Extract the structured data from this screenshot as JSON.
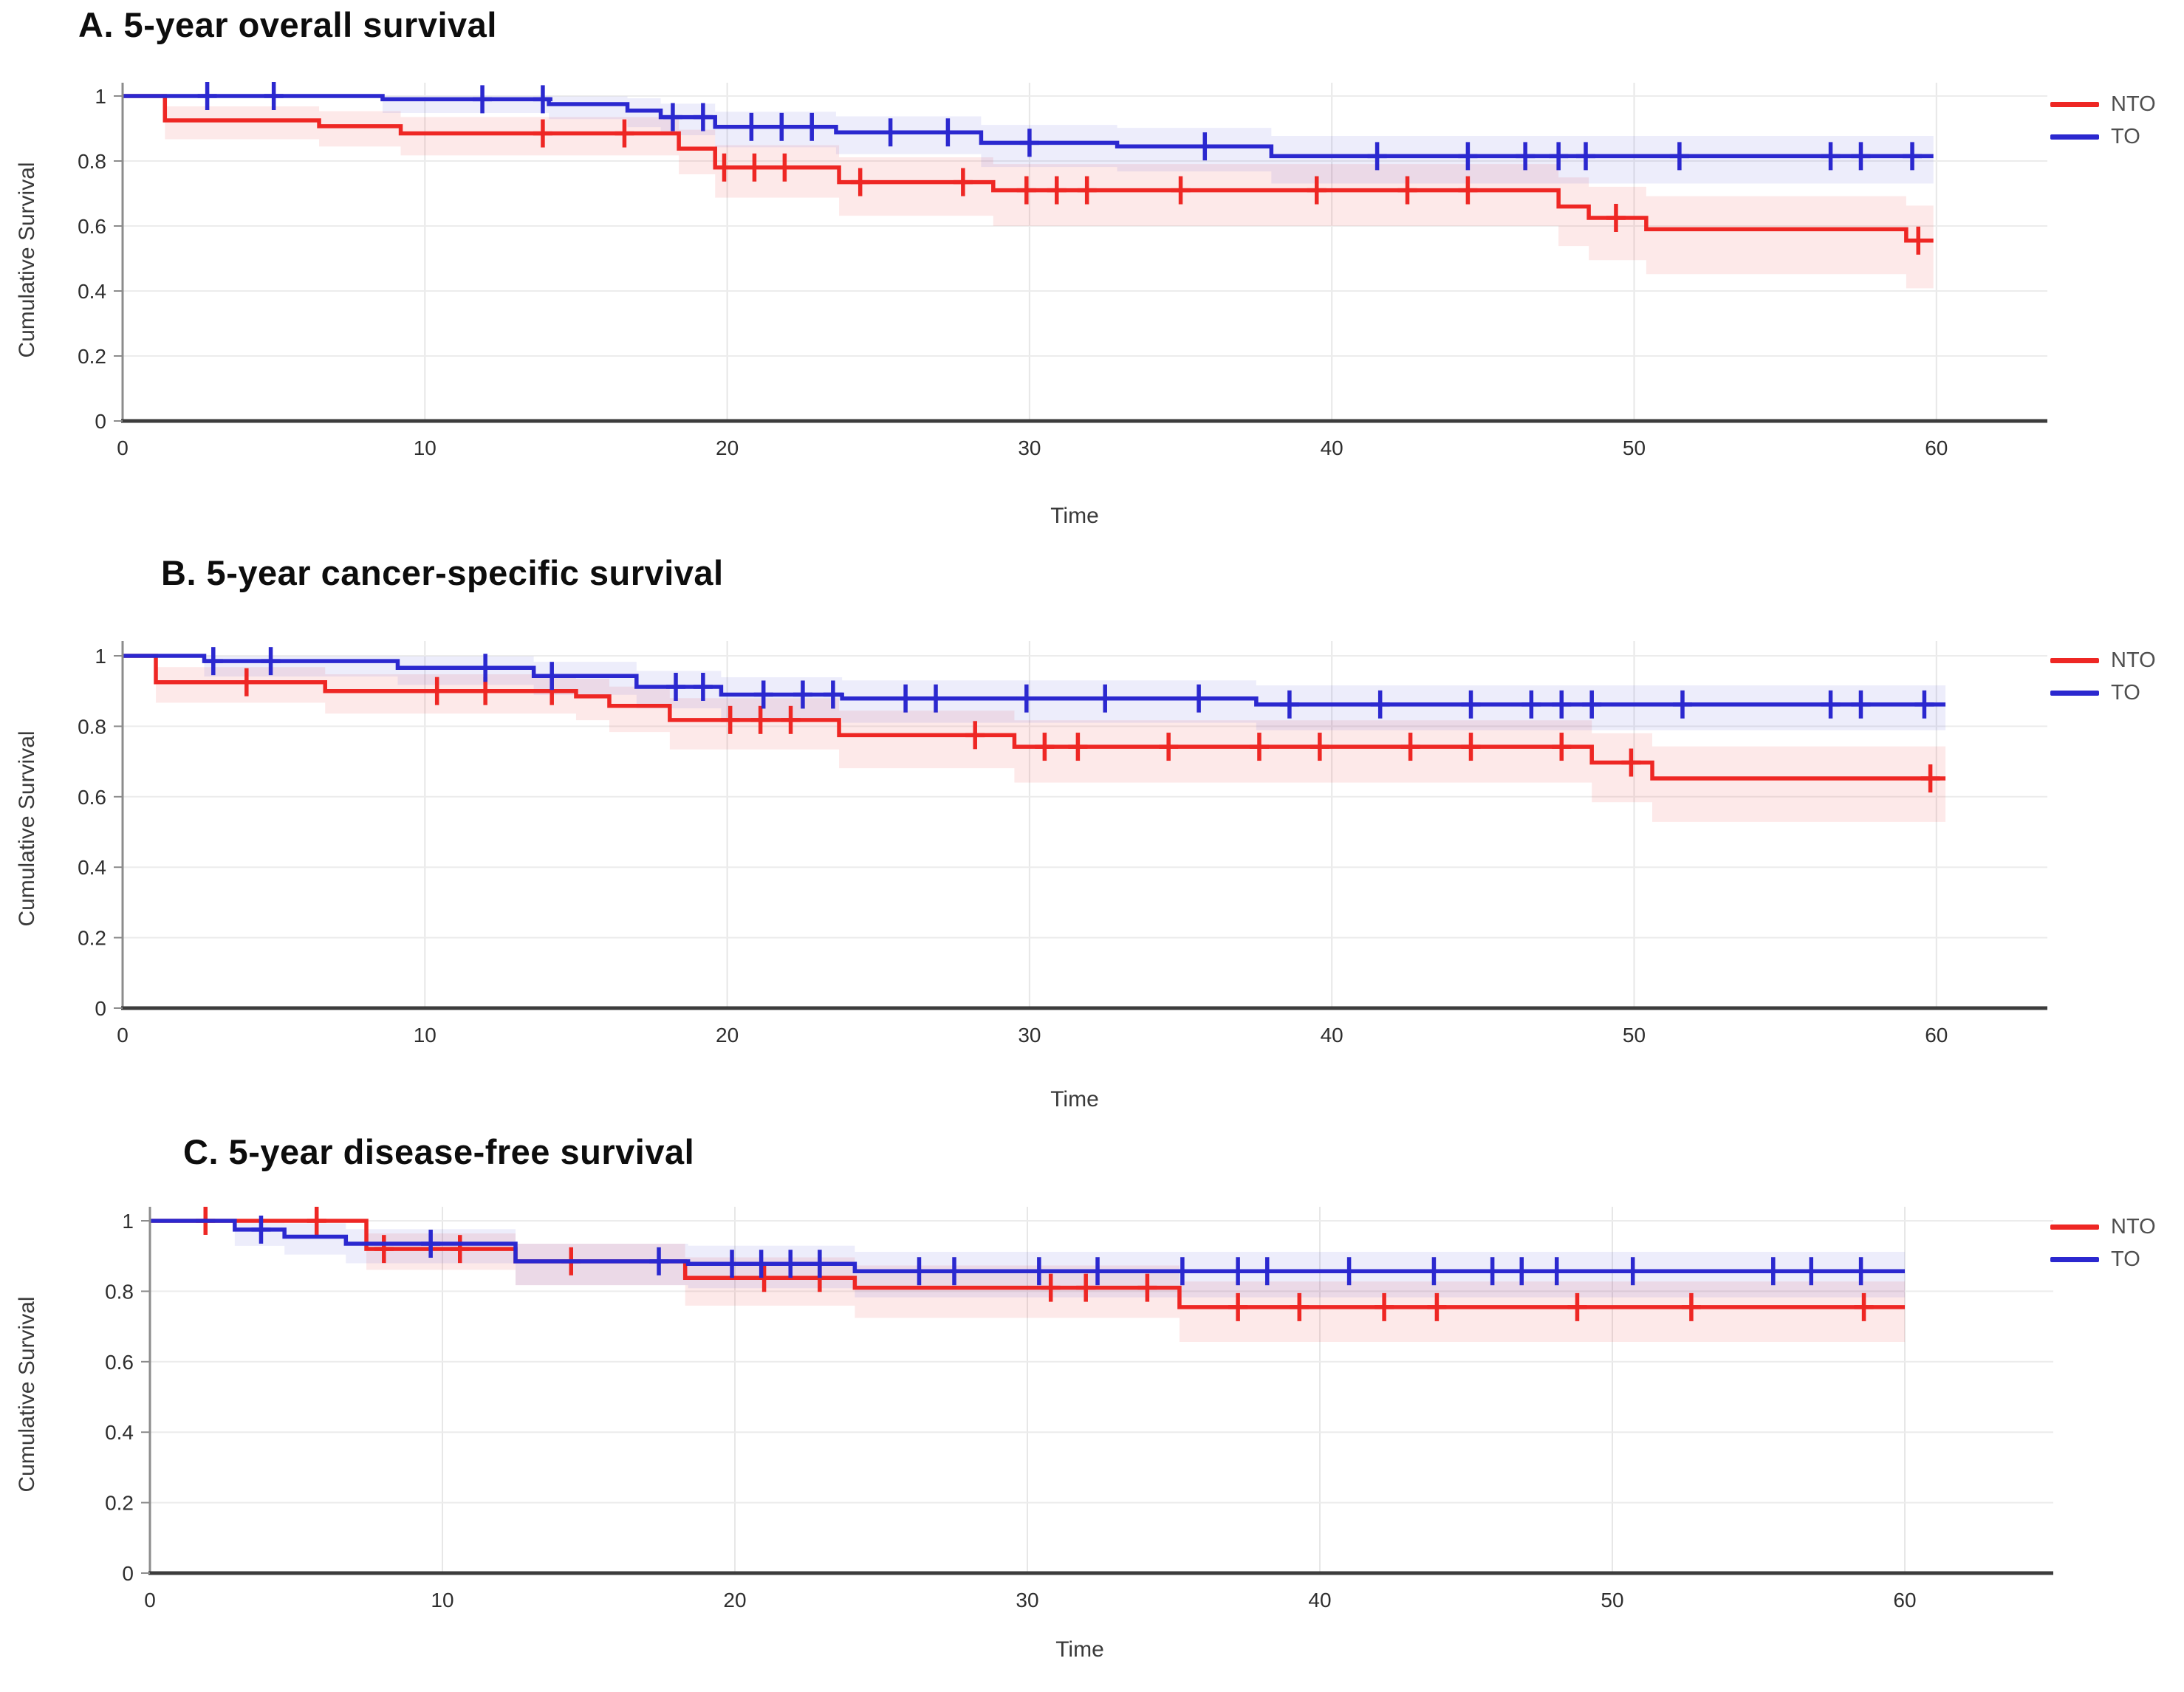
{
  "page": {
    "background": "#ffffff"
  },
  "chart_data": [
    {
      "type": "line",
      "subtype": "kaplan-meier-step-with-ci-bands",
      "title": "A. 5-year overall survival",
      "xlabel": "Time",
      "ylabel": "Cumulative Survival",
      "xlim": [
        0,
        63.5
      ],
      "ylim": [
        0,
        1.02
      ],
      "x_ticks": [
        0,
        10,
        20,
        30,
        40,
        50,
        60
      ],
      "y_ticks": [
        0,
        0.2,
        0.4,
        0.6,
        0.8,
        1
      ],
      "grid": true,
      "legend_position": "right",
      "series": [
        {
          "name": "NTO",
          "color": "#ee2724",
          "band_color": "rgba(238,39,36,0.10)",
          "steps": [
            [
              0,
              1
            ],
            [
              1.4,
              0.925
            ],
            [
              6.5,
              0.907
            ],
            [
              9.2,
              0.885
            ],
            [
              18.4,
              0.838
            ],
            [
              19.6,
              0.78
            ],
            [
              23.7,
              0.735
            ],
            [
              28.8,
              0.71
            ],
            [
              47.5,
              0.66
            ],
            [
              48.5,
              0.625
            ],
            [
              50.4,
              0.59
            ],
            [
              59.0,
              0.555
            ]
          ],
          "end_time": 59.9,
          "censors": [
            [
              13.9,
              0.885
            ],
            [
              16.6,
              0.885
            ],
            [
              19.9,
              0.78
            ],
            [
              20.9,
              0.78
            ],
            [
              21.9,
              0.78
            ],
            [
              24.4,
              0.735
            ],
            [
              27.8,
              0.735
            ],
            [
              29.9,
              0.71
            ],
            [
              30.9,
              0.71
            ],
            [
              31.9,
              0.71
            ],
            [
              35.0,
              0.71
            ],
            [
              39.5,
              0.71
            ],
            [
              42.5,
              0.71
            ],
            [
              44.5,
              0.71
            ],
            [
              49.4,
              0.625
            ],
            [
              59.4,
              0.555
            ]
          ]
        },
        {
          "name": "TO",
          "color": "#2b28cf",
          "band_color": "rgba(60,56,214,0.09)",
          "steps": [
            [
              0,
              1
            ],
            [
              8.6,
              0.99
            ],
            [
              14.1,
              0.975
            ],
            [
              16.7,
              0.955
            ],
            [
              17.8,
              0.935
            ],
            [
              19.6,
              0.905
            ],
            [
              23.6,
              0.888
            ],
            [
              28.4,
              0.856
            ],
            [
              32.9,
              0.845
            ],
            [
              38.0,
              0.815
            ]
          ],
          "end_time": 59.9,
          "censors": [
            [
              2.8,
              1
            ],
            [
              5.0,
              1
            ],
            [
              11.9,
              0.99
            ],
            [
              13.9,
              0.99
            ],
            [
              18.2,
              0.935
            ],
            [
              19.2,
              0.935
            ],
            [
              20.8,
              0.905
            ],
            [
              21.8,
              0.905
            ],
            [
              22.8,
              0.905
            ],
            [
              25.4,
              0.888
            ],
            [
              27.3,
              0.888
            ],
            [
              30.0,
              0.856
            ],
            [
              35.8,
              0.845
            ],
            [
              41.5,
              0.815
            ],
            [
              44.5,
              0.815
            ],
            [
              46.4,
              0.815
            ],
            [
              47.5,
              0.815
            ],
            [
              48.4,
              0.815
            ],
            [
              51.5,
              0.815
            ],
            [
              56.5,
              0.815
            ],
            [
              57.5,
              0.815
            ],
            [
              59.2,
              0.815
            ]
          ]
        }
      ]
    },
    {
      "type": "line",
      "subtype": "kaplan-meier-step-with-ci-bands",
      "title": "B. 5-year cancer-specific survival",
      "xlabel": "Time",
      "ylabel": "Cumulative Survival",
      "xlim": [
        0,
        63.5
      ],
      "ylim": [
        0,
        1.02
      ],
      "x_ticks": [
        0,
        10,
        20,
        30,
        40,
        50,
        60
      ],
      "y_ticks": [
        0,
        0.2,
        0.4,
        0.6,
        0.8,
        1
      ],
      "grid": true,
      "legend_position": "right",
      "series": [
        {
          "name": "NTO",
          "color": "#ee2724",
          "band_color": "rgba(238,39,36,0.10)",
          "steps": [
            [
              0,
              1
            ],
            [
              1.1,
              0.925
            ],
            [
              6.7,
              0.9
            ],
            [
              15.0,
              0.885
            ],
            [
              16.1,
              0.858
            ],
            [
              18.1,
              0.818
            ],
            [
              23.7,
              0.775
            ],
            [
              29.5,
              0.742
            ],
            [
              48.6,
              0.697
            ],
            [
              50.6,
              0.652
            ]
          ],
          "end_time": 60.3,
          "censors": [
            [
              4.1,
              0.925
            ],
            [
              10.4,
              0.9
            ],
            [
              12.0,
              0.9
            ],
            [
              14.2,
              0.9
            ],
            [
              20.1,
              0.818
            ],
            [
              21.1,
              0.818
            ],
            [
              22.1,
              0.818
            ],
            [
              28.2,
              0.775
            ],
            [
              30.5,
              0.742
            ],
            [
              31.6,
              0.742
            ],
            [
              34.6,
              0.742
            ],
            [
              37.6,
              0.742
            ],
            [
              39.6,
              0.742
            ],
            [
              42.6,
              0.742
            ],
            [
              44.6,
              0.742
            ],
            [
              47.6,
              0.742
            ],
            [
              49.9,
              0.697
            ],
            [
              59.8,
              0.652
            ]
          ]
        },
        {
          "name": "TO",
          "color": "#2b28cf",
          "band_color": "rgba(60,56,214,0.09)",
          "steps": [
            [
              0,
              1
            ],
            [
              2.7,
              0.985
            ],
            [
              9.1,
              0.966
            ],
            [
              13.6,
              0.943
            ],
            [
              17.0,
              0.912
            ],
            [
              19.8,
              0.89
            ],
            [
              23.8,
              0.879
            ],
            [
              37.5,
              0.862
            ]
          ],
          "end_time": 60.3,
          "censors": [
            [
              3.0,
              0.985
            ],
            [
              4.9,
              0.985
            ],
            [
              12.0,
              0.966
            ],
            [
              14.2,
              0.943
            ],
            [
              18.3,
              0.912
            ],
            [
              19.2,
              0.912
            ],
            [
              21.2,
              0.89
            ],
            [
              22.5,
              0.89
            ],
            [
              23.5,
              0.89
            ],
            [
              25.9,
              0.879
            ],
            [
              26.9,
              0.879
            ],
            [
              29.9,
              0.879
            ],
            [
              32.5,
              0.879
            ],
            [
              35.6,
              0.879
            ],
            [
              38.6,
              0.862
            ],
            [
              41.6,
              0.862
            ],
            [
              44.6,
              0.862
            ],
            [
              46.6,
              0.862
            ],
            [
              47.6,
              0.862
            ],
            [
              48.6,
              0.862
            ],
            [
              51.6,
              0.862
            ],
            [
              56.5,
              0.862
            ],
            [
              57.5,
              0.862
            ],
            [
              59.6,
              0.862
            ]
          ]
        }
      ]
    },
    {
      "type": "line",
      "subtype": "kaplan-meier-step-with-ci-bands",
      "title": "C. 5-year disease-free survival",
      "xlabel": "Time",
      "ylabel": "Cumulative Survival",
      "xlim": [
        0,
        63.5
      ],
      "ylim": [
        0,
        1.02
      ],
      "x_ticks": [
        0,
        10,
        20,
        30,
        40,
        50,
        60
      ],
      "y_ticks": [
        0,
        0.2,
        0.4,
        0.6,
        0.8,
        1
      ],
      "grid": true,
      "legend_position": "right",
      "series": [
        {
          "name": "NTO",
          "color": "#ee2724",
          "band_color": "rgba(238,39,36,0.10)",
          "steps": [
            [
              0,
              1
            ],
            [
              7.4,
              0.92
            ],
            [
              12.5,
              0.885
            ],
            [
              18.3,
              0.838
            ],
            [
              24.1,
              0.81
            ],
            [
              35.2,
              0.755
            ]
          ],
          "end_time": 60.0,
          "censors": [
            [
              1.9,
              1
            ],
            [
              5.7,
              1
            ],
            [
              8.0,
              0.92
            ],
            [
              10.6,
              0.92
            ],
            [
              14.4,
              0.885
            ],
            [
              21.0,
              0.838
            ],
            [
              22.9,
              0.838
            ],
            [
              30.8,
              0.81
            ],
            [
              32.0,
              0.81
            ],
            [
              34.1,
              0.81
            ],
            [
              37.2,
              0.755
            ],
            [
              39.3,
              0.755
            ],
            [
              42.2,
              0.755
            ],
            [
              44.0,
              0.755
            ],
            [
              48.8,
              0.755
            ],
            [
              52.7,
              0.755
            ],
            [
              58.6,
              0.755
            ]
          ]
        },
        {
          "name": "TO",
          "color": "#2b28cf",
          "band_color": "rgba(60,56,214,0.09)",
          "steps": [
            [
              0,
              1
            ],
            [
              2.9,
              0.975
            ],
            [
              4.6,
              0.955
            ],
            [
              6.7,
              0.935
            ],
            [
              12.5,
              0.885
            ],
            [
              18.4,
              0.878
            ],
            [
              24.1,
              0.857
            ]
          ],
          "end_time": 60.0,
          "censors": [
            [
              3.8,
              0.975
            ],
            [
              9.6,
              0.935
            ],
            [
              17.4,
              0.885
            ],
            [
              19.9,
              0.878
            ],
            [
              20.9,
              0.878
            ],
            [
              21.9,
              0.878
            ],
            [
              22.9,
              0.878
            ],
            [
              26.3,
              0.857
            ],
            [
              27.5,
              0.857
            ],
            [
              30.4,
              0.857
            ],
            [
              32.4,
              0.857
            ],
            [
              35.3,
              0.857
            ],
            [
              37.2,
              0.857
            ],
            [
              38.2,
              0.857
            ],
            [
              41.0,
              0.857
            ],
            [
              43.9,
              0.857
            ],
            [
              45.9,
              0.857
            ],
            [
              46.9,
              0.857
            ],
            [
              48.1,
              0.857
            ],
            [
              50.7,
              0.857
            ],
            [
              55.5,
              0.857
            ],
            [
              56.8,
              0.857
            ],
            [
              58.5,
              0.857
            ]
          ]
        }
      ]
    }
  ]
}
